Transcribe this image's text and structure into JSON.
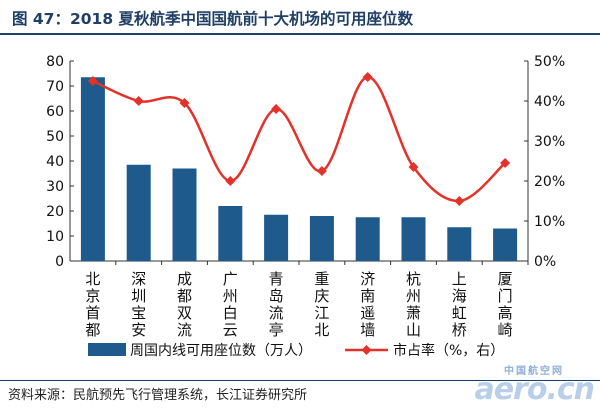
{
  "figure": {
    "title": "图 47：2018 夏秋航季中国国航前十大机场的可用座位数",
    "source": "资料来源：民航预先飞行管理系统，长江证券研究所"
  },
  "watermark": {
    "cn": "中国航空网",
    "en": "aero.cn"
  },
  "chart_data": {
    "type": "bar+line",
    "categories": [
      "北京首都",
      "深圳宝安",
      "成都双流",
      "广州白云",
      "青岛流亭",
      "重庆江北",
      "济南遥墙",
      "杭州萧山",
      "上海虹桥",
      "厦门高崎"
    ],
    "series": [
      {
        "name": "周国内线可用座位数（万人）",
        "type": "bar",
        "axis": "left",
        "color": "#1f5a8c",
        "values": [
          73.5,
          38.5,
          37,
          22,
          18.5,
          18,
          17.5,
          17.5,
          13.5,
          13
        ]
      },
      {
        "name": "市占率（%，右）",
        "type": "line",
        "axis": "right",
        "color": "#e4312a",
        "values": [
          45,
          40,
          39.5,
          20,
          38,
          22.5,
          46,
          23.5,
          15,
          24.5
        ]
      }
    ],
    "ylim_left": [
      0,
      80
    ],
    "yticks_left": [
      "0",
      "10",
      "20",
      "30",
      "40",
      "50",
      "60",
      "70",
      "80"
    ],
    "ylim_right": [
      0,
      50
    ],
    "yticks_right": [
      "0%",
      "10%",
      "20%",
      "30%",
      "40%",
      "50%"
    ],
    "grid": false,
    "legend": "bottom"
  }
}
